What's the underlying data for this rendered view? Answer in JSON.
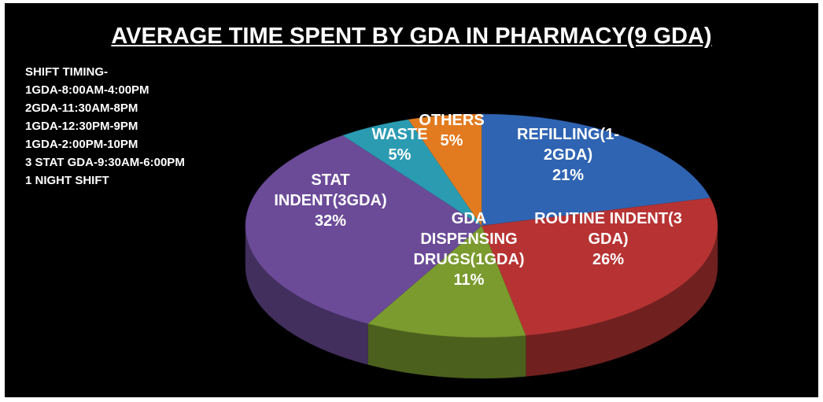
{
  "chart_data": {
    "type": "pie",
    "title": "AVERAGE TIME SPENT BY GDA IN PHARMACY(9 GDA)",
    "annotation": [
      "SHIFT TIMING-",
      "1GDA-8:00AM-4:00PM",
      "2GDA-11:30AM-8PM",
      "1GDA-12:30PM-9PM",
      "1GDA-2:00PM-10PM",
      "3 STAT GDA-9:30AM-6:00PM",
      "1 NIGHT SHIFT"
    ],
    "categories": [
      "REFILLING(1-2GDA)",
      "ROUTINE INDENT(3 GDA)",
      "GDA DISPENSING DRUGS(1GDA)",
      "STAT INDENT(3GDA)",
      "WASTE",
      "OTHERS"
    ],
    "values": [
      21,
      26,
      11,
      32,
      5,
      5
    ],
    "value_labels": [
      "21%",
      "26%",
      "11%",
      "32%",
      "5%",
      "5%"
    ],
    "colors": [
      "#2f64b2",
      "#b73333",
      "#7b9b2f",
      "#6b4b98",
      "#2b9bb2",
      "#e27b1f"
    ]
  }
}
